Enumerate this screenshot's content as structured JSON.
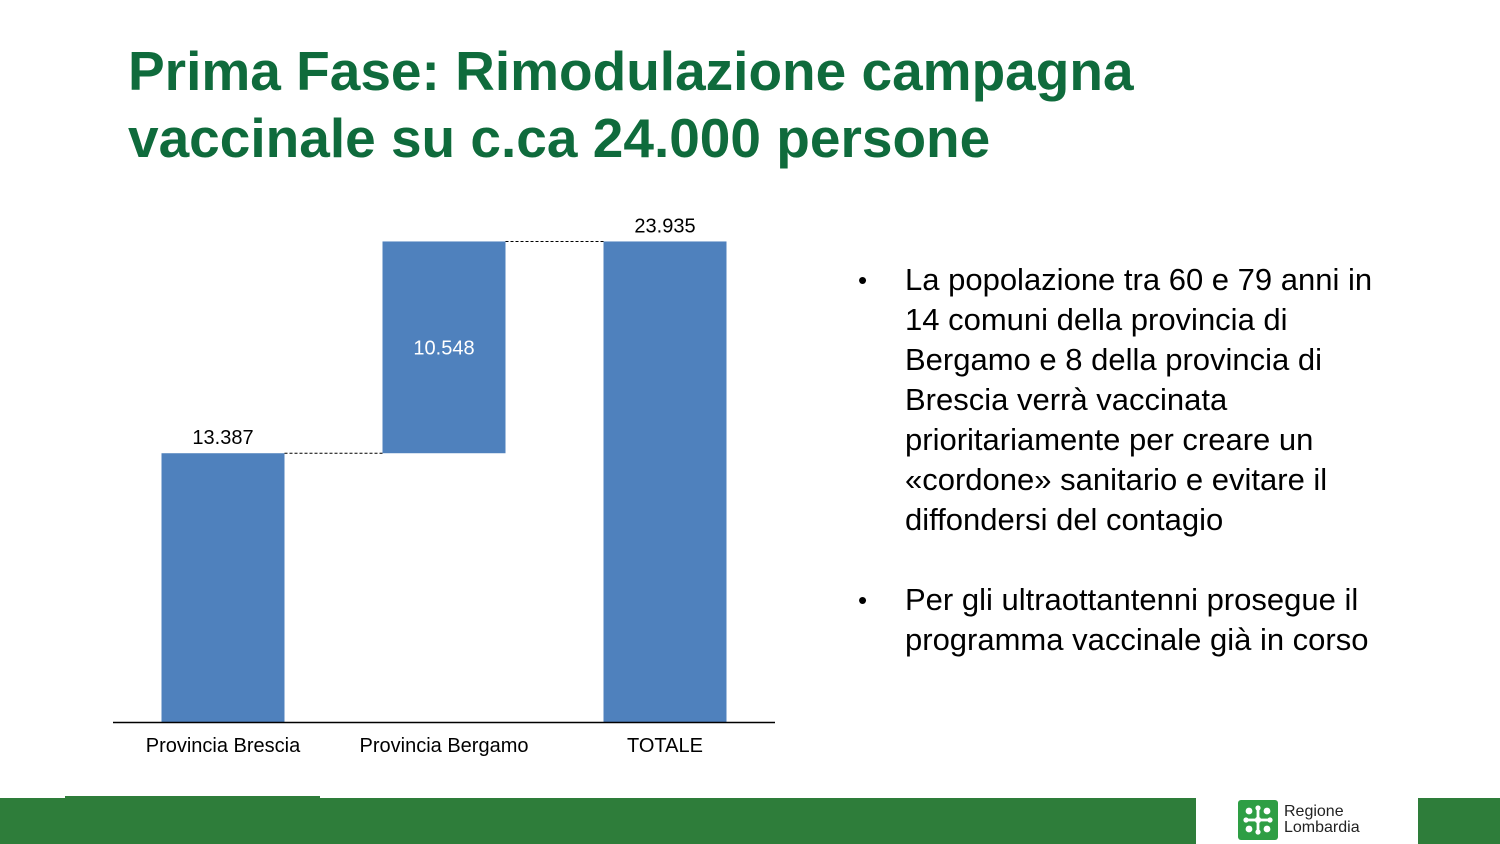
{
  "slide": {
    "title_line1": "Prima Fase: Rimodulazione campagna",
    "title_line2": "vaccinale su c.ca 24.000 persone"
  },
  "bullets": [
    {
      "marker": "•",
      "text_lines": [
        "La popolazione tra 60 e 79 anni in",
        "14 comuni della provincia di",
        "Bergamo e 8 della provincia di",
        "Brescia verrà vaccinata",
        "prioritariamente per creare un",
        "«cordone» sanitario e evitare il",
        "diffondersi del contagio"
      ]
    },
    {
      "marker": "•",
      "text_lines": [
        "Per gli ultraottantenni prosegue il",
        "programma vaccinale già in corso"
      ]
    }
  ],
  "logo": {
    "line1": "Regione",
    "line2": "Lombardia"
  },
  "colors": {
    "title": "#0f6b3c",
    "bar": "#4f81bd",
    "footer": "#2e7d3a",
    "logo_mark": "#2e9e44"
  },
  "chart_data": {
    "type": "bar",
    "subtype": "waterfall",
    "categories": [
      "Provincia Brescia",
      "Provincia Bergamo",
      "TOTALE"
    ],
    "values": [
      13387,
      10548,
      23935
    ],
    "bases": [
      0,
      13387,
      0
    ],
    "value_labels": [
      "13.387",
      "10.548",
      "23.935"
    ],
    "label_positions": [
      "above",
      "inside",
      "above"
    ],
    "ylim": [
      0,
      26000
    ],
    "grid": false,
    "legend": false,
    "connector_lines": true
  }
}
